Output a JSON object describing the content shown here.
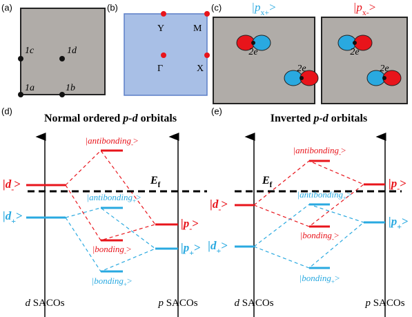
{
  "panel_a": {
    "label": "(a)",
    "sites": [
      "1c",
      "1d",
      "1a",
      "1b"
    ]
  },
  "panel_b": {
    "label": "(b)",
    "points": [
      "Y",
      "M",
      "Γ",
      "X"
    ]
  },
  "panel_c": {
    "label": "(c)",
    "orbital_plus": {
      "base": "|p",
      "sub": "x+",
      "close": ">"
    },
    "orbital_minus": {
      "base": "|p",
      "sub": "x-",
      "close": ">"
    },
    "charges": [
      "2e",
      "2e",
      "2e",
      "2e"
    ]
  },
  "panel_d": {
    "label": "(d)",
    "title": {
      "pre": "Normal ordered ",
      "italic": "p-d",
      "post": " orbitals"
    },
    "d_minus": {
      "base": "|d",
      "sub": "-",
      "close": ">"
    },
    "d_plus": {
      "base": "|d",
      "sub": "+",
      "close": ">"
    },
    "antibonding_minus": {
      "base": "|antibonding",
      "sub": "-",
      "close": ">"
    },
    "antibonding_plus": {
      "base": "|antibonding",
      "sub": "+",
      "close": ">"
    },
    "bonding_minus": {
      "base": "|bonding",
      "sub": "-",
      "close": ">"
    },
    "bonding_plus": {
      "base": "|bonding",
      "sub": "+",
      "close": ">"
    },
    "p_minus": {
      "base": "|p",
      "sub": "-",
      "close": ">"
    },
    "p_plus": {
      "base": "|p",
      "sub": "+",
      "close": ">"
    },
    "fermi": {
      "base": "E",
      "sub": "f"
    },
    "x_left": {
      "italic": "d",
      "text": " SACOs"
    },
    "x_right": {
      "italic": "p",
      "text": " SACOs"
    }
  },
  "panel_e": {
    "label": "(e)",
    "title": {
      "pre": "Inverted ",
      "italic": "p-d",
      "post": " orbitals"
    },
    "d_minus": {
      "base": "|d",
      "sub": "-",
      "close": ">"
    },
    "d_plus": {
      "base": "|d",
      "sub": "+",
      "close": ">"
    },
    "antibonding_minus": {
      "base": "|antibonding",
      "sub": "-",
      "close": ">"
    },
    "antibonding_plus": {
      "base": "|antibonding",
      "sub": "+",
      "close": ">"
    },
    "bonding_minus": {
      "base": "|bonding",
      "sub": "-",
      "close": ">"
    },
    "bonding_plus": {
      "base": "|bonding",
      "sub": "+",
      "close": ">"
    },
    "p_minus": {
      "base": "|p",
      "sub": "-",
      "close": ">"
    },
    "p_plus": {
      "base": "|p",
      "sub": "+",
      "close": ">"
    },
    "fermi": {
      "base": "E",
      "sub": "f"
    },
    "x_left": {
      "italic": "d",
      "text": " SACOs"
    },
    "x_right": {
      "italic": "p",
      "text": " SACOs"
    }
  }
}
